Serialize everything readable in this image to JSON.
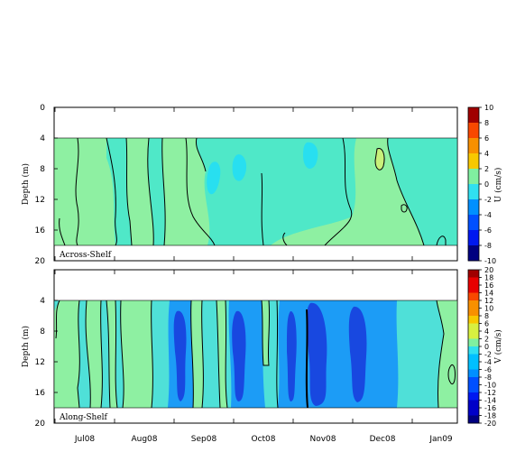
{
  "chart_data": [
    {
      "type": "heatmap",
      "annotation": "Across-Shelf",
      "ylabel": "Depth (m)",
      "ylim": [
        20,
        0
      ],
      "yticks": [
        "0",
        "4",
        "8",
        "12",
        "16",
        "20"
      ],
      "data_depth_range": [
        4,
        18
      ],
      "x_ticks": [
        "Jul08",
        "Aug08",
        "Sep08",
        "Oct08",
        "Nov08",
        "Dec08",
        "Jan09"
      ],
      "colorbar": {
        "label": "U (cm/s)",
        "range": [
          -10,
          10
        ],
        "ticks": [
          "10",
          "8",
          "6",
          "4",
          "2",
          "0",
          "-2",
          "-4",
          "-6",
          "-8",
          "-10"
        ],
        "palette": [
          "#000080",
          "#0000c8",
          "#0018f0",
          "#0050ff",
          "#0090ff",
          "#00c0ff",
          "#30e0f0",
          "#80f0a0",
          "#d8f040",
          "#f8c800",
          "#f89000",
          "#f84800",
          "#e80000",
          "#a00000"
        ]
      },
      "field_description": "Mostly weak across-shelf flow between -2 and 2 cm/s, with light-green positive bands and cyan negative regions"
    },
    {
      "type": "heatmap",
      "annotation": "Along-Shelf",
      "ylabel": "Depth (m)",
      "ylim": [
        20,
        0
      ],
      "yticks": [
        "4",
        "8",
        "12",
        "16",
        "20"
      ],
      "data_depth_range": [
        4,
        18
      ],
      "x_ticks": [
        "Jul08",
        "Aug08",
        "Sep08",
        "Oct08",
        "Nov08",
        "Dec08",
        "Jan09"
      ],
      "colorbar": {
        "label": "V (cm/s)",
        "range": [
          -20,
          20
        ],
        "ticks": [
          "20",
          "18",
          "16",
          "14",
          "12",
          "10",
          "8",
          "6",
          "4",
          "2",
          "0",
          "-2",
          "-4",
          "-6",
          "-8",
          "-10",
          "-12",
          "-14",
          "-16",
          "-18",
          "-20"
        ]
      },
      "field_description": "Predominantly negative along-shelf flow, strongest (about -12 to -16 cm/s) in Sep08 and Nov08 bands"
    }
  ]
}
